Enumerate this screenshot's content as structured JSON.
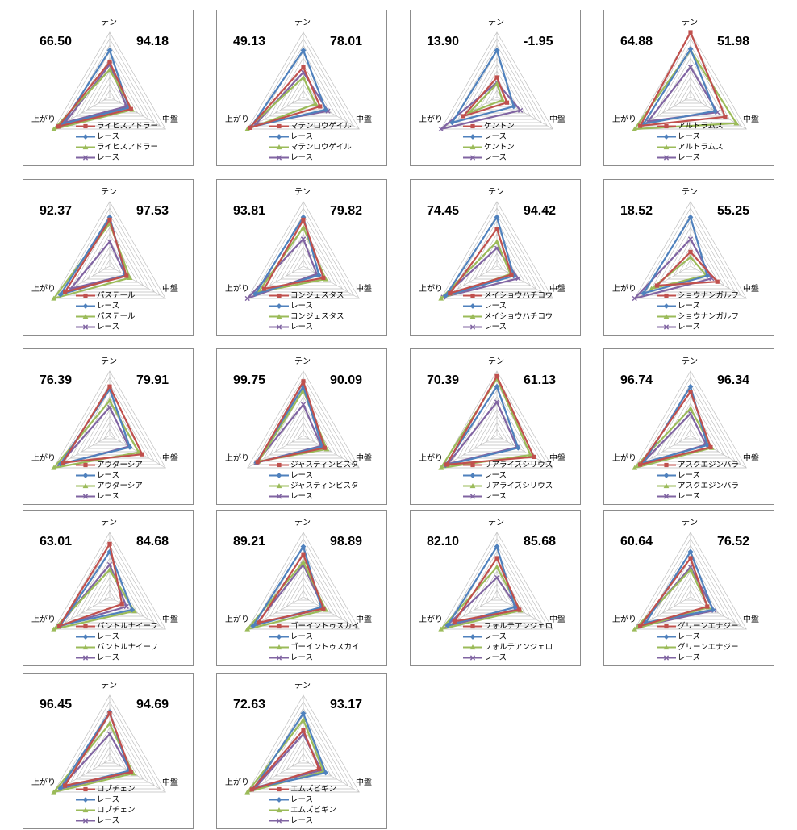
{
  "axis_labels": [
    "テン",
    "上がり",
    "中盤"
  ],
  "colors": {
    "s1": "#c0504d",
    "s2": "#4f81bd",
    "s3": "#9bbb59",
    "s4": "#8064a2"
  },
  "chart_data": [
    {
      "type": "radar",
      "values_left": "66.50",
      "values_right": "94.18",
      "legend": [
        "ライヒスアドラー",
        "レース",
        "ライヒスアドラー",
        "レース"
      ],
      "axes": [
        "テン",
        "中盤",
        "上がり"
      ],
      "series": [
        {
          "name": "ライヒスアドラー",
          "values": [
            54,
            38,
            92
          ]
        },
        {
          "name": "レース",
          "values": [
            72,
            34,
            84
          ]
        },
        {
          "name": "ライヒスアドラー",
          "values": [
            42,
            40,
            100
          ]
        },
        {
          "name": "レース",
          "values": [
            50,
            30,
            80
          ]
        }
      ]
    },
    {
      "type": "radar",
      "values_left": "49.13",
      "values_right": "78.01",
      "legend": [
        "マテンロウゲイル",
        "レース",
        "マテンロウゲイル",
        "レース"
      ],
      "axes": [
        "テン",
        "中盤",
        "上がり"
      ],
      "series": [
        {
          "name": "マテンロウゲイル",
          "values": [
            46,
            30,
            96
          ]
        },
        {
          "name": "レース",
          "values": [
            72,
            40,
            94
          ]
        },
        {
          "name": "マテンロウゲイル",
          "values": [
            30,
            22,
            100
          ]
        },
        {
          "name": "レース",
          "values": [
            38,
            44,
            86
          ]
        }
      ]
    },
    {
      "type": "radar",
      "values_left": "13.90",
      "values_right": "-1.95",
      "legend": [
        "ケントン",
        "レース",
        "ケントン",
        "レース"
      ],
      "axes": [
        "テン",
        "中盤",
        "上がり"
      ],
      "series": [
        {
          "name": "ケントン",
          "values": [
            30,
            18,
            60
          ]
        },
        {
          "name": "レース",
          "values": [
            72,
            30,
            80
          ]
        },
        {
          "name": "ケントン",
          "values": [
            20,
            10,
            50
          ]
        },
        {
          "name": "レース",
          "values": [
            22,
            42,
            100
          ]
        }
      ]
    },
    {
      "type": "radar",
      "values_left": "64.88",
      "values_right": "51.98",
      "legend": [
        "アルトラムス",
        "レース",
        "アルトラムス",
        "レース"
      ],
      "axes": [
        "テン",
        "中盤",
        "上がり"
      ],
      "series": [
        {
          "name": "アルトラムス",
          "values": [
            100,
            62,
            90
          ]
        },
        {
          "name": "レース",
          "values": [
            74,
            44,
            84
          ]
        },
        {
          "name": "アルトラムス",
          "values": [
            72,
            82,
            100
          ]
        },
        {
          "name": "レース",
          "values": [
            46,
            48,
            76
          ]
        }
      ]
    },
    {
      "type": "radar",
      "values_left": "92.37",
      "values_right": "97.53",
      "legend": [
        "パステール",
        "レース",
        "パステール",
        "レース"
      ],
      "axes": [
        "テン",
        "中盤",
        "上がり"
      ],
      "series": [
        {
          "name": "パステール",
          "values": [
            72,
            30,
            80
          ]
        },
        {
          "name": "レース",
          "values": [
            76,
            28,
            88
          ]
        },
        {
          "name": "パステール",
          "values": [
            66,
            36,
            100
          ]
        },
        {
          "name": "レース",
          "values": [
            38,
            28,
            70
          ]
        }
      ]
    },
    {
      "type": "radar",
      "values_left": "93.81",
      "values_right": "79.82",
      "legend": [
        "コンジェスタス",
        "レース",
        "コンジェスタス",
        "レース"
      ],
      "axes": [
        "テン",
        "中盤",
        "上がり"
      ],
      "series": [
        {
          "name": "コンジェスタス",
          "values": [
            72,
            36,
            70
          ]
        },
        {
          "name": "レース",
          "values": [
            76,
            28,
            86
          ]
        },
        {
          "name": "コンジェスタス",
          "values": [
            60,
            40,
            80
          ]
        },
        {
          "name": "レース",
          "values": [
            42,
            24,
            100
          ]
        }
      ]
    },
    {
      "type": "radar",
      "values_left": "74.45",
      "values_right": "94.42",
      "legend": [
        "メイショウハチコウ",
        "レース",
        "メイショウハチコウ",
        "レース"
      ],
      "axes": [
        "テン",
        "中盤",
        "上がり"
      ],
      "series": [
        {
          "name": "メイショウハチコウ",
          "values": [
            58,
            26,
            84
          ]
        },
        {
          "name": "レース",
          "values": [
            76,
            30,
            92
          ]
        },
        {
          "name": "メイショウハチコウ",
          "values": [
            38,
            24,
            100
          ]
        },
        {
          "name": "レース",
          "values": [
            28,
            38,
            96
          ]
        }
      ]
    },
    {
      "type": "radar",
      "values_left": "18.52",
      "values_right": "55.25",
      "legend": [
        "ショウナンガルフ",
        "レース",
        "ショウナンガルフ",
        "レース"
      ],
      "axes": [
        "テン",
        "中盤",
        "上がり"
      ],
      "series": [
        {
          "name": "ショウナンガルフ",
          "values": [
            22,
            48,
            60
          ]
        },
        {
          "name": "レース",
          "values": [
            76,
            30,
            84
          ]
        },
        {
          "name": "ショウナンガルフ",
          "values": [
            14,
            28,
            70
          ]
        },
        {
          "name": "レース",
          "values": [
            42,
            38,
            100
          ]
        }
      ]
    },
    {
      "type": "radar",
      "values_left": "76.39",
      "values_right": "79.91",
      "legend": [
        "アウダーシア",
        "レース",
        "アウダーシア",
        "レース"
      ],
      "axes": [
        "テン",
        "中盤",
        "上がり"
      ],
      "series": [
        {
          "name": "アウダーシア",
          "values": [
            76,
            58,
            84
          ]
        },
        {
          "name": "レース",
          "values": [
            72,
            36,
            88
          ]
        },
        {
          "name": "アウダーシア",
          "values": [
            54,
            52,
            100
          ]
        },
        {
          "name": "レース",
          "values": [
            44,
            34,
            90
          ]
        }
      ]
    },
    {
      "type": "radar",
      "values_left": "99.75",
      "values_right": "90.09",
      "legend": [
        "ジャスティンビスタ",
        "レース",
        "ジャスティンビスタ",
        "レース"
      ],
      "axes": [
        "テン",
        "中盤",
        "上がり"
      ],
      "series": [
        {
          "name": "ジャスティンビスタ",
          "values": [
            84,
            38,
            82
          ]
        },
        {
          "name": "レース",
          "values": [
            76,
            34,
            84
          ]
        },
        {
          "name": "ジャスティンビスタ",
          "values": [
            70,
            42,
            80
          ]
        },
        {
          "name": "レース",
          "values": [
            48,
            32,
            84
          ]
        }
      ]
    },
    {
      "type": "radar",
      "values_left": "70.39",
      "values_right": "61.13",
      "legend": [
        "リアライズシリウス",
        "レース",
        "リアライズシリウス",
        "レース"
      ],
      "axes": [
        "テン",
        "中盤",
        "上がり"
      ],
      "series": [
        {
          "name": "リアライズシリウス",
          "values": [
            92,
            66,
            90
          ]
        },
        {
          "name": "レース",
          "values": [
            76,
            38,
            92
          ]
        },
        {
          "name": "リアライズシリウス",
          "values": [
            88,
            60,
            100
          ]
        },
        {
          "name": "レース",
          "values": [
            52,
            36,
            88
          ]
        }
      ]
    },
    {
      "type": "radar",
      "values_left": "96.74",
      "values_right": "96.34",
      "legend": [
        "アスクエジンバラ",
        "レース",
        "アスクエジンバラ",
        "レース"
      ],
      "axes": [
        "テン",
        "中盤",
        "上がり"
      ],
      "series": [
        {
          "name": "アスクエジンバラ",
          "values": [
            68,
            36,
            90
          ]
        },
        {
          "name": "レース",
          "values": [
            76,
            30,
            84
          ]
        },
        {
          "name": "アスクエジンバラ",
          "values": [
            42,
            38,
            100
          ]
        },
        {
          "name": "レース",
          "values": [
            34,
            28,
            88
          ]
        }
      ]
    },
    {
      "type": "radar",
      "values_left": "63.01",
      "values_right": "84.68",
      "legend": [
        "バントルナイーフ",
        "レース",
        "バントルナイーフ",
        "レース"
      ],
      "axes": [
        "テン",
        "中盤",
        "上がり"
      ],
      "series": [
        {
          "name": "バントルナイーフ",
          "values": [
            82,
            22,
            90
          ]
        },
        {
          "name": "レース",
          "values": [
            70,
            40,
            88
          ]
        },
        {
          "name": "バントルナイーフ",
          "values": [
            42,
            44,
            100
          ]
        },
        {
          "name": "レース",
          "values": [
            50,
            30,
            92
          ]
        }
      ]
    },
    {
      "type": "radar",
      "values_left": "89.21",
      "values_right": "98.89",
      "legend": [
        "ゴーイントゥスカイ",
        "レース",
        "ゴーイントゥスカイ",
        "レース"
      ],
      "axes": [
        "テン",
        "中盤",
        "上がり"
      ],
      "series": [
        {
          "name": "ゴーイントゥスカイ",
          "values": [
            66,
            36,
            80
          ]
        },
        {
          "name": "レース",
          "values": [
            78,
            32,
            90
          ]
        },
        {
          "name": "ゴーイントゥスカイ",
          "values": [
            54,
            40,
            100
          ]
        },
        {
          "name": "レース",
          "values": [
            50,
            36,
            84
          ]
        }
      ]
    },
    {
      "type": "radar",
      "values_left": "82.10",
      "values_right": "85.68",
      "legend": [
        "フォルテアンジェロ",
        "レース",
        "フォルテアンジェロ",
        "レース"
      ],
      "axes": [
        "テン",
        "中盤",
        "上がり"
      ],
      "series": [
        {
          "name": "フォルテアンジェロ",
          "values": [
            60,
            40,
            76
          ]
        },
        {
          "name": "レース",
          "values": [
            78,
            32,
            88
          ]
        },
        {
          "name": "フォルテアンジェロ",
          "values": [
            46,
            42,
            100
          ]
        },
        {
          "name": "レース",
          "values": [
            30,
            38,
            90
          ]
        }
      ]
    },
    {
      "type": "radar",
      "values_left": "60.64",
      "values_right": "76.52",
      "legend": [
        "グリーンエナジー",
        "レース",
        "グリーンエナジー",
        "レース"
      ],
      "axes": [
        "テン",
        "中盤",
        "上がり"
      ],
      "series": [
        {
          "name": "グリーンエナジー",
          "values": [
            60,
            30,
            90
          ]
        },
        {
          "name": "レース",
          "values": [
            70,
            40,
            80
          ]
        },
        {
          "name": "グリーンエナジー",
          "values": [
            42,
            32,
            100
          ]
        },
        {
          "name": "レース",
          "values": [
            46,
            42,
            92
          ]
        }
      ]
    },
    {
      "type": "radar",
      "values_left": "96.45",
      "values_right": "94.69",
      "legend": [
        "ロブチェン",
        "レース",
        "ロブチェン",
        "レース"
      ],
      "axes": [
        "テン",
        "中盤",
        "上がり"
      ],
      "series": [
        {
          "name": "ロブチェン",
          "values": [
            72,
            38,
            80
          ]
        },
        {
          "name": "レース",
          "values": [
            74,
            34,
            88
          ]
        },
        {
          "name": "ロブチェン",
          "values": [
            56,
            42,
            100
          ]
        },
        {
          "name": "レース",
          "values": [
            40,
            38,
            90
          ]
        }
      ]
    },
    {
      "type": "radar",
      "values_left": "72.63",
      "values_right": "93.17",
      "legend": [
        "エムズビギン",
        "レース",
        "エムズビギン",
        "レース"
      ],
      "axes": [
        "テン",
        "中盤",
        "上がり"
      ],
      "series": [
        {
          "name": "エムズビギン",
          "values": [
            46,
            28,
            92
          ]
        },
        {
          "name": "レース",
          "values": [
            72,
            40,
            88
          ]
        },
        {
          "name": "エムズビギン",
          "values": [
            62,
            36,
            100
          ]
        },
        {
          "name": "レース",
          "values": [
            40,
            32,
            86
          ]
        }
      ]
    }
  ]
}
